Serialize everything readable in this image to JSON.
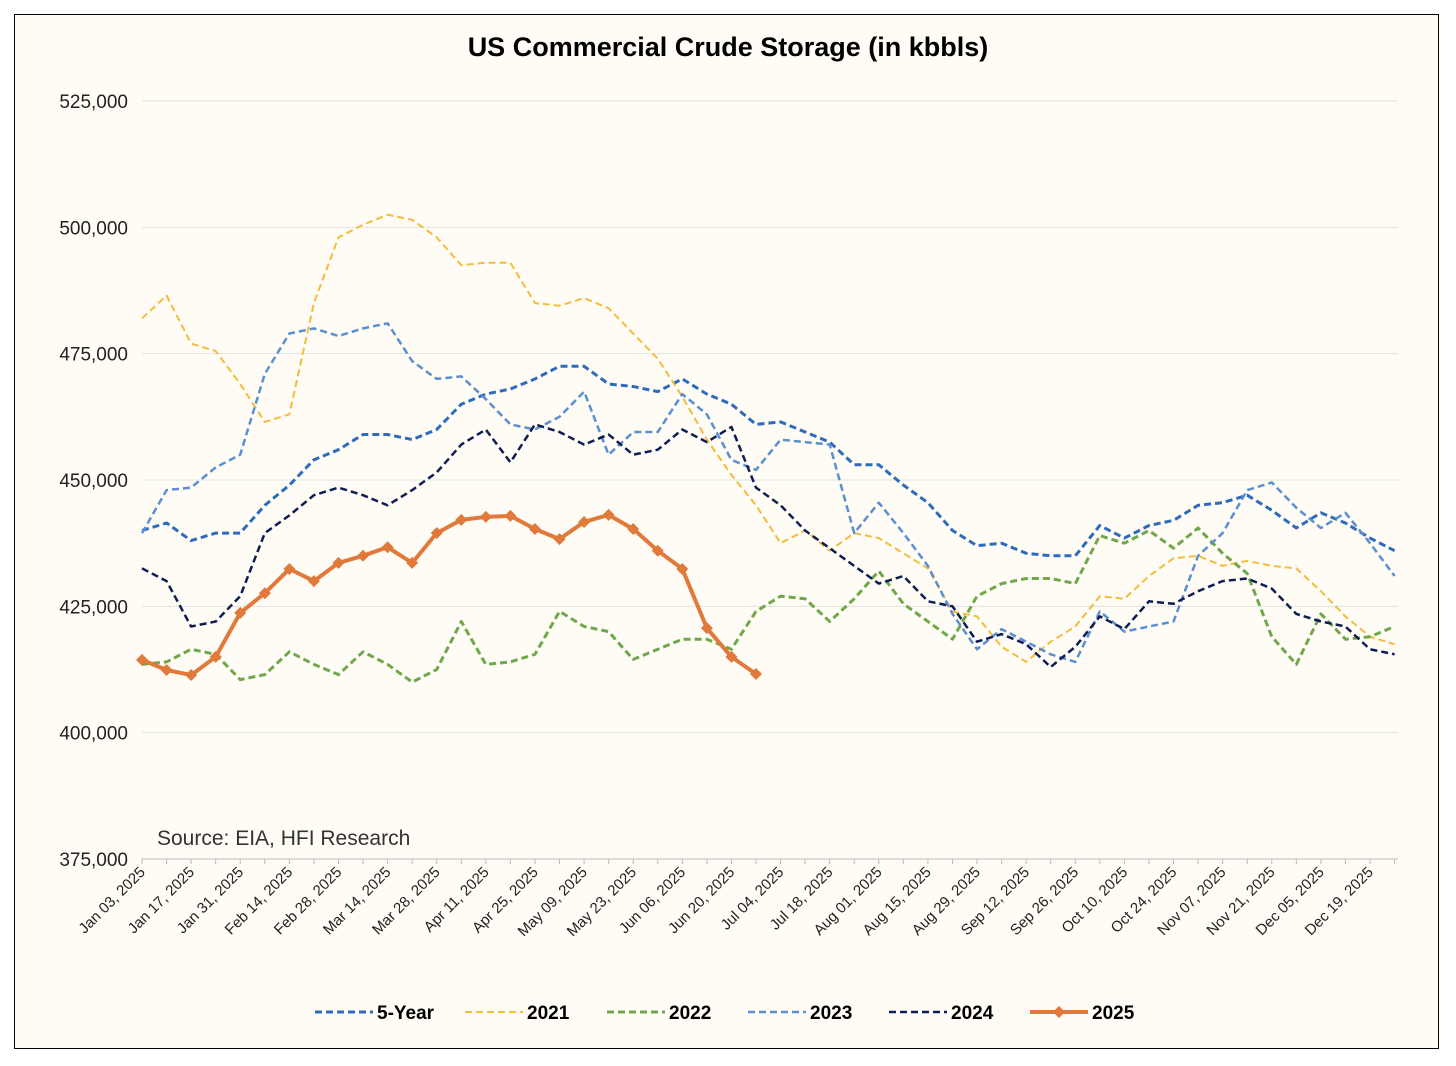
{
  "chart_data": {
    "type": "line",
    "title": "US Commercial Crude Storage (in kbbls)",
    "annotation": "Source: EIA, HFI Research",
    "xlabel": "",
    "ylabel": "",
    "ylim": [
      375000,
      525000
    ],
    "yticks": [
      375000,
      400000,
      425000,
      450000,
      475000,
      500000,
      525000
    ],
    "ytick_labels": [
      "375,000",
      "400,000",
      "425,000",
      "450,000",
      "475,000",
      "500,000",
      "525,000"
    ],
    "x_points": 52,
    "x_interval": "weekly",
    "x_tick_labels": [
      "Jan 03, 2025",
      "Jan 17, 2025",
      "Jan 31, 2025",
      "Feb 14, 2025",
      "Feb 28, 2025",
      "Mar 14, 2025",
      "Mar 28, 2025",
      "Apr 11, 2025",
      "Apr 25, 2025",
      "May 09, 2025",
      "May 23, 2025",
      "Jun 06, 2025",
      "Jun 20, 2025",
      "Jul 04, 2025",
      "Jul 18, 2025",
      "Aug 01, 2025",
      "Aug 15, 2025",
      "Aug 29, 2025",
      "Sep 12, 2025",
      "Sep 26, 2025",
      "Oct 10, 2025",
      "Oct 24, 2025",
      "Nov 07, 2025",
      "Nov 21, 2025",
      "Dec 05, 2025",
      "Dec 19, 2025"
    ],
    "grid": true,
    "legend_position": "bottom",
    "values_scale": 1000,
    "series": [
      {
        "name": "5-Year",
        "color": "#2f6bbd",
        "dash": "dashed",
        "width": 3,
        "values": [
          440,
          441.5,
          438,
          439.5,
          439.5,
          445,
          449,
          454,
          456,
          459,
          459,
          458,
          460,
          465,
          467,
          468,
          470,
          472.5,
          472.5,
          469,
          468.5,
          467.5,
          470,
          467,
          465,
          461,
          461.5,
          459.5,
          457.5,
          453,
          453,
          449,
          445.5,
          440,
          437,
          437.5,
          435.5,
          435,
          435,
          441,
          438.5,
          441,
          442,
          445,
          445.5,
          447,
          444,
          440.5,
          443.5,
          441.5,
          438.5,
          436
        ]
      },
      {
        "name": "2021",
        "color": "#f4bc3c",
        "dash": "dashed",
        "width": 2,
        "values": [
          482,
          486.5,
          477,
          475.5,
          469,
          461.5,
          463,
          485,
          498,
          500.5,
          502.5,
          501.5,
          498,
          492.5,
          493,
          493,
          485,
          484.5,
          486,
          484,
          479,
          474,
          466.5,
          458,
          451,
          445,
          437.5,
          440,
          436,
          439.5,
          438.5,
          435.5,
          432.5,
          424,
          423,
          417,
          414,
          418,
          421,
          427,
          426.5,
          431,
          434.5,
          435,
          433,
          434,
          433,
          432.5,
          428,
          423,
          419,
          417.5
        ]
      },
      {
        "name": "2022",
        "color": "#71a74b",
        "dash": "dashed",
        "width": 3,
        "values": [
          413.5,
          414,
          416.5,
          415.5,
          410.5,
          411.5,
          416,
          413.5,
          411.5,
          416,
          413.5,
          410,
          412.5,
          422,
          413.5,
          414,
          415.5,
          424,
          421,
          420,
          414.5,
          416.5,
          418.5,
          418.5,
          416.5,
          424,
          427,
          426.5,
          422,
          426.5,
          432,
          425.5,
          422,
          418.5,
          427,
          429.5,
          430.5,
          430.5,
          429.5,
          439,
          437.5,
          440,
          436.5,
          440.5,
          435.5,
          431.5,
          419,
          413.5,
          423.5,
          418.5,
          419,
          421
        ]
      },
      {
        "name": "2023",
        "color": "#5b8fd1",
        "dash": "dashed",
        "width": 2.5,
        "values": [
          439.5,
          448,
          448.5,
          452.5,
          455,
          471,
          479,
          480,
          478.5,
          480,
          481,
          473.5,
          470,
          470.5,
          466,
          461,
          460,
          462.5,
          467.5,
          455,
          459.5,
          459.5,
          467,
          463,
          454,
          452,
          458,
          457.5,
          457,
          439.5,
          445.5,
          439.5,
          433,
          423.5,
          416.5,
          420.5,
          418,
          415.5,
          414,
          424,
          420,
          421,
          422,
          435,
          439.5,
          448,
          449.5,
          444.5,
          440.5,
          443.5,
          437.5,
          431
        ]
      },
      {
        "name": "2024",
        "color": "#0f1d55",
        "dash": "dashed",
        "width": 2.5,
        "values": [
          432.5,
          430,
          421,
          422,
          427,
          439.5,
          443,
          447,
          448.5,
          447,
          445,
          448,
          451.5,
          457,
          460,
          453.5,
          461,
          459.5,
          457,
          459,
          455,
          456,
          460,
          457.5,
          460.5,
          448.5,
          445,
          440,
          436.5,
          433,
          429.5,
          431,
          426,
          425,
          418,
          419.5,
          417.5,
          413,
          417,
          423,
          420.5,
          426,
          425.5,
          428,
          430,
          430.5,
          428.5,
          423.5,
          422,
          421,
          416.5,
          415.5
        ]
      },
      {
        "name": "2025",
        "color": "#e0793a",
        "dash": "solid",
        "width": 4,
        "marker": "diamond",
        "values": [
          414.4,
          412.4,
          411.4,
          415.0,
          423.7,
          427.6,
          432.4,
          430.0,
          433.6,
          435.0,
          436.7,
          433.6,
          439.5,
          442.1,
          442.7,
          442.9,
          440.3,
          438.3,
          441.7,
          443.1,
          440.3,
          436.0,
          432.4,
          420.7,
          415.0,
          411.6
        ]
      }
    ]
  }
}
